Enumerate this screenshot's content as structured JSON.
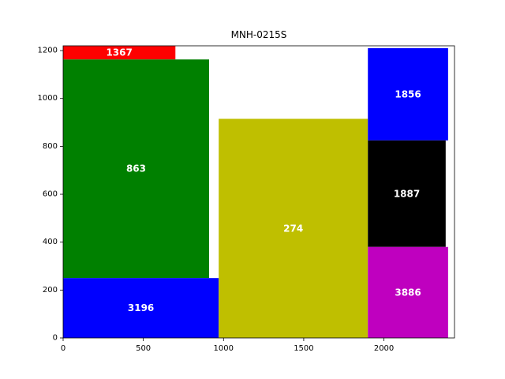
{
  "chart_data": {
    "type": "treemap",
    "title": "MNH-0215S",
    "xlabel": "",
    "ylabel": "",
    "xlim": [
      0,
      2440
    ],
    "ylim": [
      0,
      1220
    ],
    "xticks": [
      0,
      500,
      1000,
      1500,
      2000
    ],
    "yticks": [
      0,
      200,
      400,
      600,
      800,
      1000,
      1200
    ],
    "grid": false,
    "rects": [
      {
        "label": "1367",
        "x": 0,
        "y": 1163,
        "w": 700,
        "h": 57,
        "color": "#ff0000"
      },
      {
        "label": "863",
        "x": 0,
        "y": 250,
        "w": 910,
        "h": 913,
        "color": "#008000"
      },
      {
        "label": "3196",
        "x": 0,
        "y": 0,
        "w": 970,
        "h": 250,
        "color": "#0000ff"
      },
      {
        "label": "274",
        "x": 970,
        "y": 0,
        "w": 930,
        "h": 915,
        "color": "#bfbf00"
      },
      {
        "label": "1856",
        "x": 1900,
        "y": 825,
        "w": 500,
        "h": 385,
        "color": "#0000ff"
      },
      {
        "label": "1887",
        "x": 1900,
        "y": 380,
        "w": 485,
        "h": 445,
        "color": "#000000"
      },
      {
        "label": "3886",
        "x": 1900,
        "y": 0,
        "w": 500,
        "h": 380,
        "color": "#bf00bf"
      }
    ]
  }
}
